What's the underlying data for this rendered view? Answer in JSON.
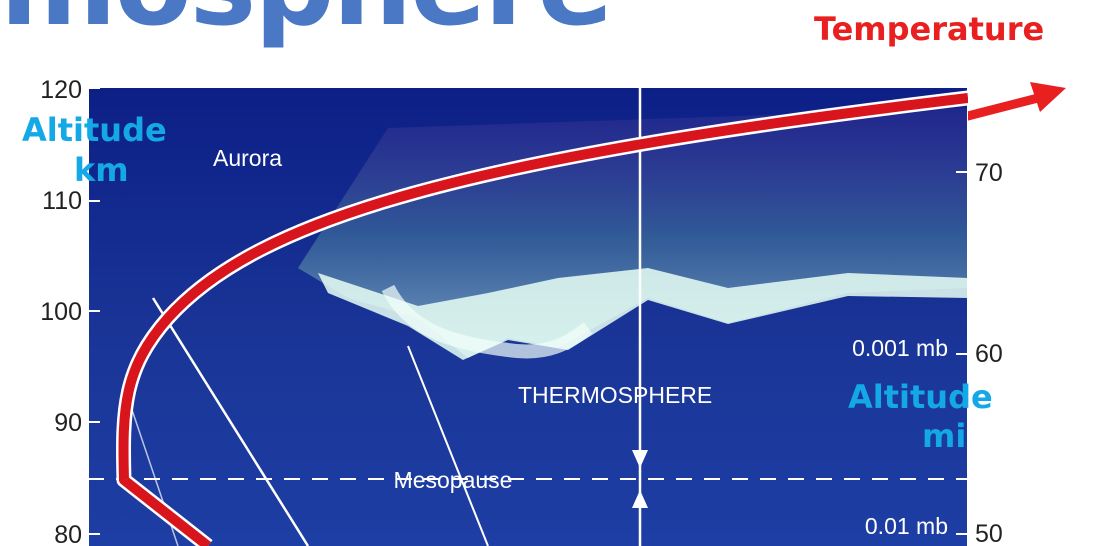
{
  "title": "mosphere",
  "temperature_label": "Temperature",
  "left_axis": {
    "title_line1": "Altitude",
    "title_line2": "km",
    "ticks": [
      120,
      110,
      100,
      90,
      80
    ]
  },
  "right_axis": {
    "title_line1": "Altitude",
    "title_line2": "mi",
    "ticks": [
      70,
      60,
      50
    ]
  },
  "labels": {
    "aurora": "Aurora",
    "thermosphere": "THERMOSPHERE",
    "mesopause": "Mesopause",
    "pressure_high": "0.001 mb",
    "pressure_low": "0.01 mb"
  },
  "colors": {
    "title": "#4a78c4",
    "temperature": "#e82020",
    "axis_title": "#14a8e6",
    "sky": "#1a2f8c"
  }
}
